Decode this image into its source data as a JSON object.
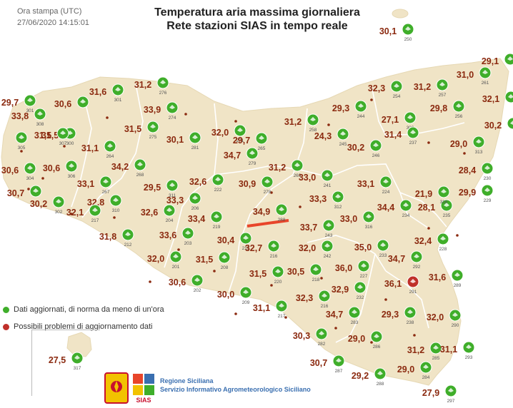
{
  "header": {
    "time_label": "Ora stampa (UTC)",
    "time_value": "27/06/2020 14:15:01",
    "title_line1": "Temperatura aria massima giornaliera",
    "title_line2": "Rete stazioni SIAS in tempo reale"
  },
  "legend": {
    "ok": "Dati aggiornati, di norma da meno di un'ora",
    "problem": "Possibili problemi di aggiornamento dati",
    "ok_color": "#3fae2a",
    "problem_color": "#c0302a"
  },
  "footer": {
    "line1": "Regione Siciliana",
    "line2": "Servizio Informativo Agrometeorologico Siciliano",
    "logo_text": "SIAS"
  },
  "colors": {
    "land": "#f0e4c6",
    "border": "#ffffff",
    "temp_text": "#8b2a10",
    "station_green": "#3fae2a",
    "station_red": "#c0302a",
    "highlight": "#e8452a"
  },
  "stations": [
    {
      "t": "30,1",
      "id": "250"
    },
    {
      "t": "29,7",
      "id": "301"
    },
    {
      "t": "31,6",
      "id": "301"
    },
    {
      "t": "31,2",
      "id": "276"
    },
    {
      "t": "33,8",
      "id": "308"
    },
    {
      "t": "30,6",
      "id": ""
    },
    {
      "t": "31,5",
      "id": "300"
    },
    {
      "t": "33,9",
      "id": "274"
    },
    {
      "t": "31,5",
      "id": "275"
    },
    {
      "t": "30,1",
      "id": "281"
    },
    {
      "t": "31,1",
      "id": "264"
    },
    {
      "t": "32,0",
      "id": "271"
    },
    {
      "t": "29,7",
      "id": "265"
    },
    {
      "t": "34,7",
      "id": "279"
    },
    {
      "t": "30,6",
      "id": "306"
    },
    {
      "t": "34,2",
      "id": "268"
    },
    {
      "t": "31,2",
      "id": "269"
    },
    {
      "t": "30,7",
      "id": ""
    },
    {
      "t": "33,1",
      "id": "267"
    },
    {
      "t": "29,5",
      "id": "311"
    },
    {
      "t": "32,6",
      "id": "222"
    },
    {
      "t": "30,9",
      "id": "278"
    },
    {
      "t": "33,0",
      "id": "241"
    },
    {
      "t": "33,1",
      "id": "224"
    },
    {
      "t": "30,2",
      "id": "302"
    },
    {
      "t": "32,8",
      "id": "310"
    },
    {
      "t": "33,3",
      "id": "206"
    },
    {
      "t": "33,3",
      "id": "312"
    },
    {
      "t": "32,1",
      "id": "217"
    },
    {
      "t": "32,6",
      "id": "204"
    },
    {
      "t": "33,4",
      "id": "219"
    },
    {
      "t": "34,9",
      "id": "288"
    },
    {
      "t": "33,7",
      "id": "243"
    },
    {
      "t": "33,0",
      "id": "316"
    },
    {
      "t": "34,4",
      "id": "234"
    },
    {
      "t": "28,1",
      "id": "235"
    },
    {
      "t": "31,8",
      "id": "212"
    },
    {
      "t": "33,6",
      "id": "203"
    },
    {
      "t": "30,4",
      "id": "215"
    },
    {
      "t": "32,7",
      "id": "216"
    },
    {
      "t": "32,0",
      "id": "242"
    },
    {
      "t": "35,0",
      "id": "233"
    },
    {
      "t": "32,4",
      "id": "228"
    },
    {
      "t": "32,0",
      "id": "201"
    },
    {
      "t": "31,5",
      "id": "208"
    },
    {
      "t": "31,5",
      "id": "220"
    },
    {
      "t": "30,5",
      "id": "218"
    },
    {
      "t": "36,0",
      "id": "227"
    },
    {
      "t": "34,7",
      "id": "292"
    },
    {
      "t": "30,6",
      "id": "202"
    },
    {
      "t": "30,0",
      "id": "209"
    },
    {
      "t": "32,9",
      "id": "232"
    },
    {
      "t": "36,1",
      "id": "291"
    },
    {
      "t": "31,6",
      "id": "289"
    },
    {
      "t": "31,1",
      "id": "217"
    },
    {
      "t": "32,3",
      "id": "216"
    },
    {
      "t": "34,7",
      "id": "283"
    },
    {
      "t": "29,3",
      "id": "238"
    },
    {
      "t": "32,0",
      "id": "290"
    },
    {
      "t": "30,3",
      "id": "282"
    },
    {
      "t": "29,0",
      "id": "286"
    },
    {
      "t": "31,2",
      "id": "285"
    },
    {
      "t": "31,1",
      "id": "293"
    },
    {
      "t": "30,7",
      "id": "287"
    },
    {
      "t": "29,2",
      "id": "288"
    },
    {
      "t": "29,0",
      "id": "284"
    },
    {
      "t": "27,9",
      "id": "297"
    },
    {
      "t": "32,3",
      "id": "254"
    },
    {
      "t": "31,2",
      "id": "257"
    },
    {
      "t": "31,0",
      "id": "261"
    },
    {
      "t": "29,3",
      "id": "244"
    },
    {
      "t": "31,2",
      "id": "258"
    },
    {
      "t": "29,8",
      "id": "256"
    },
    {
      "t": "27,1",
      "id": "309"
    },
    {
      "t": "32,1",
      "id": ""
    },
    {
      "t": "24,3",
      "id": "245"
    },
    {
      "t": "30,2",
      "id": "246"
    },
    {
      "t": "31,4",
      "id": "237"
    },
    {
      "t": "29,0",
      "id": "313"
    },
    {
      "t": "30,2",
      "id": ""
    },
    {
      "t": "28,4",
      "id": "230"
    },
    {
      "t": "21,9",
      "id": "318"
    },
    {
      "t": "29,9",
      "id": "229"
    },
    {
      "t": "29,1",
      "id": ""
    },
    {
      "t": "27,5",
      "id": "317"
    },
    {
      "t": "31,5",
      "id": "307"
    },
    {
      "t": "30,6",
      "id": "304"
    },
    {
      "t": "",
      "id": "305"
    }
  ],
  "problem_station_index": 52
}
